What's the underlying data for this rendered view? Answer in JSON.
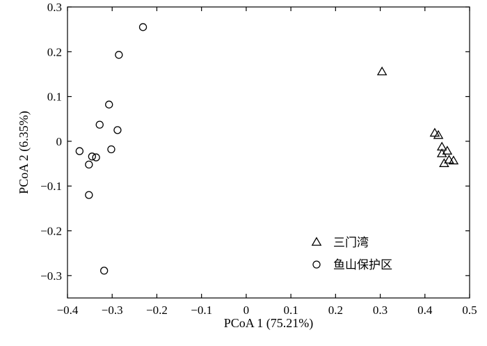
{
  "chart_data": {
    "type": "scatter",
    "xlabel": "PCoA 1 (75.21%)",
    "ylabel": "PCoA 2 (6.35%)",
    "xlim": [
      -0.4,
      0.5
    ],
    "ylim": [
      -0.35,
      0.3
    ],
    "xticks": [
      -0.4,
      -0.3,
      -0.2,
      -0.1,
      0,
      0.1,
      0.2,
      0.3,
      0.4,
      0.5
    ],
    "xtick_labels": [
      "−0.4",
      "−0.3",
      "−0.2",
      "−0.1",
      "0",
      "0.1",
      "0.2",
      "0.3",
      "0.4",
      "0.5"
    ],
    "yticks": [
      -0.3,
      -0.2,
      -0.1,
      0,
      0.1,
      0.2,
      0.3
    ],
    "ytick_labels": [
      "−0.3",
      "−0.2",
      "−0.1",
      "0",
      "0.1",
      "0.2",
      "0.3"
    ],
    "grid": false,
    "legend_position": "bottom-right",
    "series": [
      {
        "name": "三门湾",
        "marker": "triangle",
        "points": [
          {
            "x": 0.304,
            "y": 0.155
          },
          {
            "x": 0.422,
            "y": 0.018
          },
          {
            "x": 0.43,
            "y": 0.013
          },
          {
            "x": 0.438,
            "y": -0.013
          },
          {
            "x": 0.45,
            "y": -0.022
          },
          {
            "x": 0.438,
            "y": -0.028
          },
          {
            "x": 0.454,
            "y": -0.042
          },
          {
            "x": 0.464,
            "y": -0.044
          },
          {
            "x": 0.443,
            "y": -0.05
          }
        ]
      },
      {
        "name": "鱼山保护区",
        "marker": "circle",
        "points": [
          {
            "x": -0.231,
            "y": 0.255
          },
          {
            "x": -0.285,
            "y": 0.193
          },
          {
            "x": -0.307,
            "y": 0.082
          },
          {
            "x": -0.328,
            "y": 0.037
          },
          {
            "x": -0.288,
            "y": 0.025
          },
          {
            "x": -0.302,
            "y": -0.018
          },
          {
            "x": -0.373,
            "y": -0.022
          },
          {
            "x": -0.345,
            "y": -0.034
          },
          {
            "x": -0.336,
            "y": -0.036
          },
          {
            "x": -0.352,
            "y": -0.052
          },
          {
            "x": -0.352,
            "y": -0.12
          },
          {
            "x": -0.318,
            "y": -0.289
          }
        ]
      }
    ]
  }
}
